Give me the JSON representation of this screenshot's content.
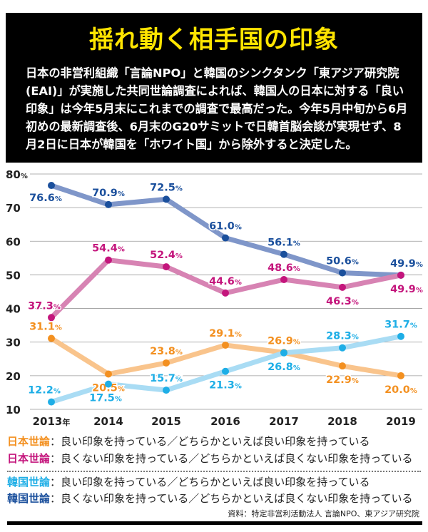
{
  "title": "揺れ動く相手国の印象",
  "lead": "日本の非営利組織「言論NPO」と韓国のシンクタンク「東アジア研究院(EAI)」が実施した共同世論調査によれば、韓国人の日本に対する「良い印象」は今年5月末にこれまでの調査で最高だった。今年5月中旬から6月初めの最新調査後、6月末のG20サミットで日韓首脳会談が実現せず、8月2日に日本が韓国を「ホワイト国」から除外すると決定した。",
  "legend": [
    {
      "label": "日本世論",
      "text": "：良い印象を持っている／どちらかといえば良い印象を持っている",
      "color": "#f39020"
    },
    {
      "label": "日本世論",
      "text": "：良くない印象を持っている／どちらかといえば良くない印象を持っている",
      "color": "#c4157c"
    },
    {
      "label": "韓国世論",
      "text": "：良い印象を持っている／どちらかといえば良い印象を持っている",
      "color": "#1eaee6"
    },
    {
      "label": "韓国世論",
      "text": "：良くない印象を持っている／どちらかといえば良くない印象を持っている",
      "color": "#1a4f9c"
    }
  ],
  "source": "資料：特定非営利活動法人 言論NPO、東アジア研究院",
  "chart_data": {
    "type": "line",
    "x": [
      "2013年",
      "2014",
      "2015",
      "2016",
      "2017",
      "2018",
      "2019"
    ],
    "ylim": [
      10,
      80
    ],
    "yticks": [
      "80%",
      "70",
      "60",
      "50",
      "40",
      "30",
      "20",
      "10"
    ],
    "ytick_values": [
      80,
      70,
      60,
      50,
      40,
      30,
      20,
      10
    ],
    "grid": true,
    "series": [
      {
        "values": [
          76.6,
          70.9,
          72.5,
          61.0,
          56.1,
          50.6,
          49.9
        ],
        "labels": [
          "76.6%",
          "70.9%",
          "72.5%",
          "61.0%",
          "56.1%",
          "50.6%",
          "49.9%"
        ],
        "line_color": "#7f96c9",
        "color": "#1a4f9c"
      },
      {
        "values": [
          37.3,
          54.4,
          52.4,
          44.6,
          48.6,
          46.3,
          49.9
        ],
        "labels": [
          "37.3%",
          "54.4%",
          "52.4%",
          "44.6%",
          "48.6%",
          "46.3%",
          "49.9%"
        ],
        "line_color": "#d783b3",
        "color": "#c4157c"
      },
      {
        "values": [
          31.1,
          20.5,
          23.8,
          29.1,
          26.9,
          22.9,
          20.0
        ],
        "labels": [
          "31.1%",
          "20.5%",
          "23.8%",
          "29.1%",
          "26.9%",
          "22.9%",
          "20.0%"
        ],
        "line_color": "#f9c48c",
        "color": "#f39020"
      },
      {
        "values": [
          12.2,
          17.5,
          15.7,
          21.3,
          26.8,
          28.3,
          31.7
        ],
        "labels": [
          "12.2%",
          "17.5%",
          "15.7%",
          "21.3%",
          "26.8%",
          "28.3%",
          "31.7%"
        ],
        "line_color": "#a9dcf4",
        "color": "#1eaee6"
      }
    ]
  }
}
